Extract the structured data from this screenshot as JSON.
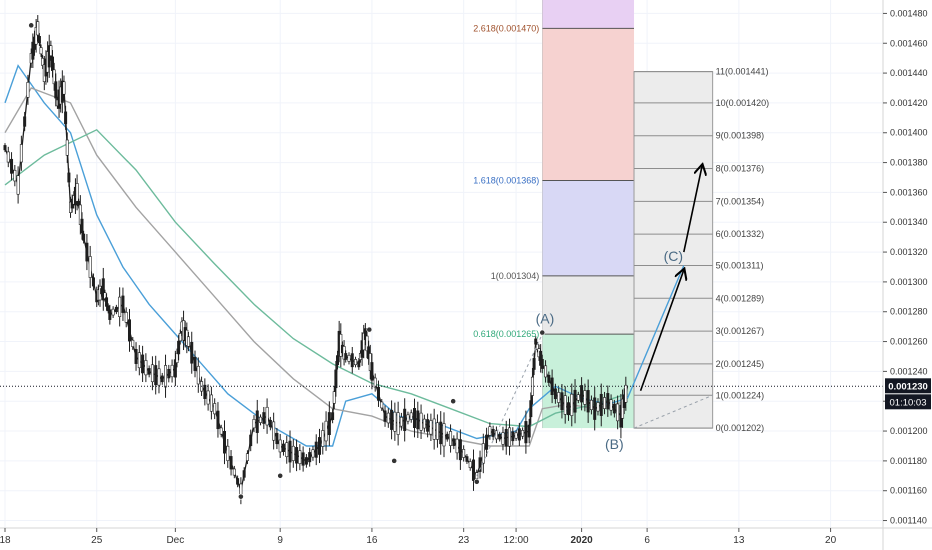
{
  "chart_data": {
    "type": "candlestick",
    "y_axis": {
      "labels": [
        "0.001480",
        "0.001460",
        "0.001440",
        "0.001420",
        "0.001400",
        "0.001380",
        "0.001360",
        "0.001340",
        "0.001320",
        "0.001300",
        "0.001280",
        "0.001260",
        "0.001240",
        "0.001220",
        "0.001200",
        "0.001180",
        "0.001160",
        "0.001140"
      ],
      "ylim": [
        0.001135,
        0.001489
      ],
      "scale": "linear"
    },
    "x_axis": {
      "labels": [
        {
          "t": 0,
          "text": "18"
        },
        {
          "t": 7,
          "text": "25"
        },
        {
          "t": 13,
          "text": "Dec"
        },
        {
          "t": 21,
          "text": "9"
        },
        {
          "t": 28,
          "text": "16"
        },
        {
          "t": 35,
          "text": "23"
        },
        {
          "t": 39,
          "text": "12:00"
        },
        {
          "t": 44,
          "text": "2020"
        },
        {
          "t": 49,
          "text": "6"
        },
        {
          "t": 56,
          "text": "13"
        },
        {
          "t": 63,
          "text": "20"
        }
      ],
      "tmax": 67
    },
    "grid": true,
    "current_price": {
      "label": "0.001230",
      "countdown": "01:10:03",
      "value": 0.00123,
      "line_color": "#131722",
      "label_bg": "#131722"
    },
    "price_path": [
      [
        0,
        0.00139
      ],
      [
        1,
        0.001365
      ],
      [
        2,
        0.00145
      ],
      [
        2.5,
        0.00147
      ],
      [
        3,
        0.00144
      ],
      [
        3.5,
        0.001455
      ],
      [
        4,
        0.00142
      ],
      [
        4.5,
        0.00143
      ],
      [
        5,
        0.00135
      ],
      [
        5.5,
        0.00136
      ],
      [
        6,
        0.00133
      ],
      [
        7,
        0.00129
      ],
      [
        7.5,
        0.001295
      ],
      [
        8,
        0.001278
      ],
      [
        9,
        0.001285
      ],
      [
        10,
        0.00125
      ],
      [
        11,
        0.00124
      ],
      [
        12,
        0.001235
      ],
      [
        13,
        0.001242
      ],
      [
        13.5,
        0.00127
      ],
      [
        14,
        0.00126
      ],
      [
        15,
        0.00123
      ],
      [
        16,
        0.001215
      ],
      [
        17,
        0.001185
      ],
      [
        18,
        0.00116
      ],
      [
        19,
        0.001205
      ],
      [
        20,
        0.00121
      ],
      [
        21,
        0.00119
      ],
      [
        22,
        0.001185
      ],
      [
        23,
        0.00118
      ],
      [
        24,
        0.00119
      ],
      [
        25,
        0.00121
      ],
      [
        25.5,
        0.00126
      ],
      [
        26,
        0.00125
      ],
      [
        27,
        0.001245
      ],
      [
        27.5,
        0.001265
      ],
      [
        28,
        0.00124
      ],
      [
        29,
        0.00121
      ],
      [
        30,
        0.001205
      ],
      [
        31,
        0.00121
      ],
      [
        32,
        0.001205
      ],
      [
        33,
        0.0012
      ],
      [
        34,
        0.001195
      ],
      [
        35,
        0.001185
      ],
      [
        36,
        0.00117
      ],
      [
        37,
        0.0012
      ],
      [
        38,
        0.001195
      ],
      [
        39,
        0.001197
      ],
      [
        40,
        0.0012
      ],
      [
        40.5,
        0.00126
      ],
      [
        41,
        0.001245
      ],
      [
        42,
        0.001225
      ],
      [
        43,
        0.001215
      ],
      [
        44,
        0.001225
      ],
      [
        45,
        0.001215
      ],
      [
        46,
        0.00122
      ],
      [
        47,
        0.00121
      ],
      [
        47.5,
        0.00123
      ]
    ],
    "moving_averages": [
      {
        "color": "#4a9fd8",
        "points": [
          [
            0,
            0.00142
          ],
          [
            1,
            0.001445
          ],
          [
            3,
            0.00142
          ],
          [
            5,
            0.0014
          ],
          [
            7,
            0.001345
          ],
          [
            9,
            0.00131
          ],
          [
            11,
            0.001285
          ],
          [
            13,
            0.001265
          ],
          [
            15,
            0.001245
          ],
          [
            17,
            0.001225
          ],
          [
            20,
            0.001205
          ],
          [
            23,
            0.00119
          ],
          [
            25,
            0.00119
          ],
          [
            26,
            0.00122
          ],
          [
            28,
            0.001225
          ],
          [
            30,
            0.00121
          ],
          [
            33,
            0.001205
          ],
          [
            36,
            0.001195
          ],
          [
            39,
            0.0012
          ],
          [
            40,
            0.001215
          ],
          [
            42,
            0.00123
          ],
          [
            44,
            0.001222
          ],
          [
            46,
            0.001218
          ],
          [
            47.5,
            0.001222
          ]
        ]
      },
      {
        "color": "#a3a3a3",
        "points": [
          [
            0,
            0.0014
          ],
          [
            2,
            0.00143
          ],
          [
            5,
            0.00142
          ],
          [
            7,
            0.001385
          ],
          [
            10,
            0.00135
          ],
          [
            13,
            0.00132
          ],
          [
            16,
            0.00129
          ],
          [
            19,
            0.00126
          ],
          [
            22,
            0.001235
          ],
          [
            25,
            0.001215
          ],
          [
            28,
            0.00121
          ],
          [
            31,
            0.0012
          ],
          [
            34,
            0.001195
          ],
          [
            37,
            0.00119
          ],
          [
            40,
            0.00119
          ],
          [
            41,
            0.001215
          ],
          [
            43,
            0.001218
          ],
          [
            45,
            0.001215
          ],
          [
            47.5,
            0.00122
          ]
        ]
      },
      {
        "color": "#6dbb9c",
        "points": [
          [
            0,
            0.001365
          ],
          [
            3,
            0.001385
          ],
          [
            7,
            0.001402
          ],
          [
            10,
            0.001375
          ],
          [
            13,
            0.00134
          ],
          [
            16,
            0.001312
          ],
          [
            19,
            0.001285
          ],
          [
            22,
            0.001262
          ],
          [
            25,
            0.001245
          ],
          [
            28,
            0.001232
          ],
          [
            31,
            0.001225
          ],
          [
            34,
            0.001215
          ],
          [
            37,
            0.001205
          ],
          [
            40,
            0.001203
          ],
          [
            42,
            0.001212
          ],
          [
            45,
            0.001218
          ],
          [
            47.5,
            0.001225
          ]
        ]
      }
    ],
    "fib_extension_zone": {
      "t0": 41,
      "t1": 48,
      "bands": [
        {
          "from": 0.001202,
          "to": 0.001265,
          "color": "#c8f0da"
        },
        {
          "from": 0.001265,
          "to": 0.001304,
          "color": "#e9e9e9"
        },
        {
          "from": 0.001304,
          "to": 0.001368,
          "color": "#d8d8f5"
        },
        {
          "from": 0.001368,
          "to": 0.00147,
          "color": "#f6d2d0"
        },
        {
          "from": 0.00147,
          "to": 0.001489,
          "color": "#e8d0f3"
        }
      ],
      "levels": [
        {
          "text": "0.618(0.001265)",
          "value": 0.001265,
          "color": "#31a97a"
        },
        {
          "text": "1(0.001304)",
          "value": 0.001304,
          "color": "#555555"
        },
        {
          "text": "1.618(0.001368)",
          "value": 0.001368,
          "color": "#3a70c4"
        },
        {
          "text": "2.618(0.001470)",
          "value": 0.00147,
          "color": "#a0522d"
        }
      ]
    },
    "fib_ruler": {
      "t0": 48,
      "t1": 54,
      "fill": "#ececec",
      "levels": [
        {
          "text": "0(0.001202)",
          "value": 0.001202
        },
        {
          "text": "1(0.001224)",
          "value": 0.001224
        },
        {
          "text": "2(0.001245)",
          "value": 0.001245
        },
        {
          "text": "3(0.001267)",
          "value": 0.001267
        },
        {
          "text": "4(0.001289)",
          "value": 0.001289
        },
        {
          "text": "5(0.001311)",
          "value": 0.001311
        },
        {
          "text": "6(0.001332)",
          "value": 0.001332
        },
        {
          "text": "7(0.001354)",
          "value": 0.001354
        },
        {
          "text": "8(0.001376)",
          "value": 0.001376
        },
        {
          "text": "9(0.001398)",
          "value": 0.001398
        },
        {
          "text": "10(0.001420)",
          "value": 0.00142
        },
        {
          "text": "11(0.001441)",
          "value": 0.001441
        }
      ]
    },
    "wave_labels": [
      {
        "text": "(A)",
        "t": 41.2,
        "value": 0.001272,
        "color": "#4a6a84"
      },
      {
        "text": "(B)",
        "t": 46.5,
        "value": 0.001188,
        "color": "#4a6a84"
      },
      {
        "text": "(C)",
        "t": 51,
        "value": 0.001314,
        "color": "#4a6a84"
      }
    ],
    "projection_line": {
      "color": "#4a9fd8",
      "points": [
        [
          47.5,
          0.001222
        ],
        [
          51.8,
          0.001311
        ]
      ]
    },
    "arrows": [
      {
        "from": [
          48.5,
          0.001227
        ],
        "to": [
          51.8,
          0.001308
        ]
      },
      {
        "from": [
          51.8,
          0.00132
        ],
        "to": [
          53.2,
          0.001378
        ]
      }
    ],
    "dashed_lines": [
      {
        "points": [
          [
            36,
            0.00117
          ],
          [
            41,
            0.001265
          ]
        ],
        "color": "#9aa2ab"
      },
      {
        "points": [
          [
            48,
            0.001202
          ],
          [
            54,
            0.001224
          ]
        ],
        "color": "#9aa2ab"
      }
    ],
    "pivot_markers": [
      [
        2,
        0.001472
      ],
      [
        18,
        0.001156
      ],
      [
        21,
        0.00117
      ],
      [
        27.8,
        0.001268
      ],
      [
        29.7,
        0.00118
      ],
      [
        34.2,
        0.00122
      ],
      [
        36,
        0.001166
      ],
      [
        41,
        0.001266
      ]
    ]
  }
}
